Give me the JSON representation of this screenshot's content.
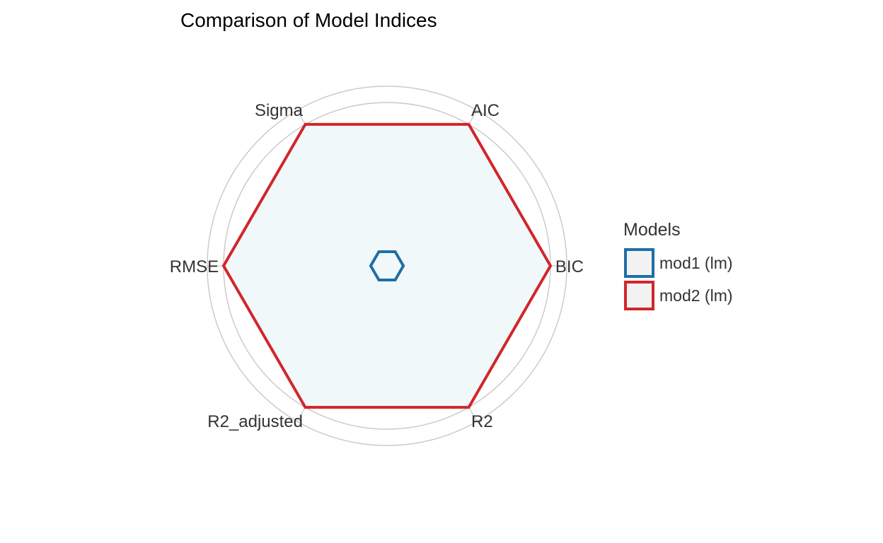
{
  "chart_data": {
    "type": "radar",
    "title": "Comparison of Model Indices",
    "axes": [
      "AIC",
      "BIC",
      "R2",
      "R2_adjusted",
      "RMSE",
      "Sigma"
    ],
    "rlim": [
      0,
      1.1
    ],
    "grid_rings": [
      0.2,
      0.4,
      0.6,
      0.8,
      1.0,
      1.1
    ],
    "grid": true,
    "fill_color": "#f1f8fa",
    "series": [
      {
        "name": "mod1 (lm)",
        "color": "#1f6fa6",
        "values": [
          0.1,
          0.1,
          0.1,
          0.1,
          0.1,
          0.1
        ]
      },
      {
        "name": "mod2 (lm)",
        "color": "#d1262b",
        "values": [
          1.0,
          1.0,
          1.0,
          1.0,
          1.0,
          1.0
        ]
      }
    ],
    "legend": {
      "title": "Models",
      "position": "right"
    }
  }
}
